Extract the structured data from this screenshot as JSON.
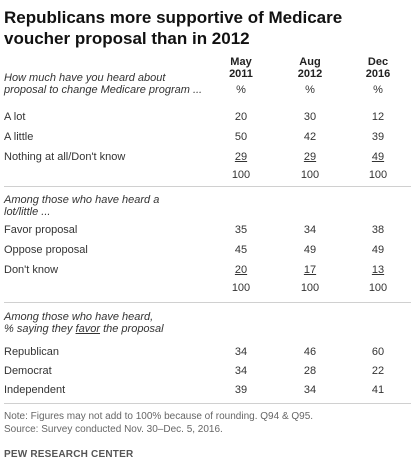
{
  "chart_data": {
    "type": "table",
    "title": "Republicans more supportive of Medicare voucher proposal than in 2012",
    "columns": [
      {
        "line1": "May",
        "line2": "2011"
      },
      {
        "line1": "Aug",
        "line2": "2012"
      },
      {
        "line1": "Dec",
        "line2": "2016"
      }
    ],
    "sections": [
      {
        "question_lines": [
          "How much have you heard about",
          "proposal to change Medicare program ..."
        ],
        "units_row": [
          "%",
          "%",
          "%"
        ],
        "rows": [
          {
            "label": "A lot",
            "values": [
              "20",
              "30",
              "12"
            ]
          },
          {
            "label": "A little",
            "values": [
              "50",
              "42",
              "39"
            ]
          },
          {
            "label": "Nothing at all/Don't know",
            "values": [
              "29",
              "29",
              "49"
            ]
          }
        ],
        "total": [
          "100",
          "100",
          "100"
        ]
      },
      {
        "question_lines": [
          "Among those who have heard a",
          "lot/little ..."
        ],
        "rows": [
          {
            "label": "Favor proposal",
            "values": [
              "35",
              "34",
              "38"
            ]
          },
          {
            "label": "Oppose proposal",
            "values": [
              "45",
              "49",
              "49"
            ]
          },
          {
            "label": "Don't know",
            "values": [
              "20",
              "17",
              "13"
            ]
          }
        ],
        "total": [
          "100",
          "100",
          "100"
        ]
      },
      {
        "question_line1": "Among those who have heard,",
        "question_line2_pre": "% saying they ",
        "question_line2_ul": "favor",
        "question_line2_post": " the proposal",
        "rows": [
          {
            "label": "Republican",
            "values": [
              "34",
              "46",
              "60"
            ]
          },
          {
            "label": "Democrat",
            "values": [
              "34",
              "28",
              "22"
            ]
          },
          {
            "label": "Independent",
            "values": [
              "39",
              "34",
              "41"
            ]
          }
        ]
      }
    ],
    "notes": [
      "Note: Figures may not add to 100% because of rounding. Q94 & Q95.",
      "Source: Survey conducted Nov. 30–Dec. 5, 2016."
    ],
    "brand": "PEW RESEARCH CENTER"
  }
}
